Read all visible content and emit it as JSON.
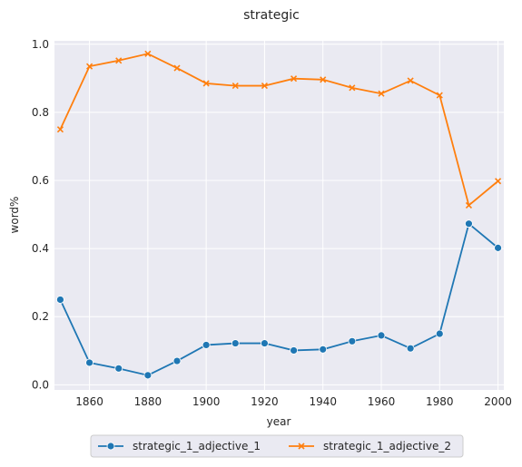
{
  "chart_data": {
    "type": "line",
    "title": "strategic",
    "xlabel": "year",
    "ylabel": "word%",
    "xlim": [
      1848,
      2002
    ],
    "ylim": [
      -0.015,
      1.01
    ],
    "xticks": [
      1860,
      1880,
      1900,
      1920,
      1940,
      1960,
      1980,
      2000
    ],
    "yticks": [
      0.0,
      0.2,
      0.4,
      0.6,
      0.8,
      1.0
    ],
    "ytick_labels": [
      "0.0",
      "0.2",
      "0.4",
      "0.6",
      "0.8",
      "1.0"
    ],
    "grid": true,
    "legend_position": "bottom-center",
    "x": [
      1850,
      1860,
      1870,
      1880,
      1890,
      1900,
      1910,
      1920,
      1930,
      1940,
      1950,
      1960,
      1970,
      1980,
      1990,
      2000
    ],
    "series": [
      {
        "name": "strategic_1_adjective_1",
        "color": "#1f77b4",
        "marker": "circle",
        "values": [
          0.25,
          0.065,
          0.048,
          0.028,
          0.07,
          0.117,
          0.122,
          0.122,
          0.101,
          0.104,
          0.128,
          0.145,
          0.107,
          0.15,
          0.473,
          0.402
        ]
      },
      {
        "name": "strategic_1_adjective_2",
        "color": "#ff7f0e",
        "marker": "x",
        "values": [
          0.75,
          0.935,
          0.952,
          0.972,
          0.93,
          0.885,
          0.878,
          0.878,
          0.899,
          0.896,
          0.872,
          0.855,
          0.893,
          0.85,
          0.527,
          0.598
        ]
      }
    ]
  }
}
